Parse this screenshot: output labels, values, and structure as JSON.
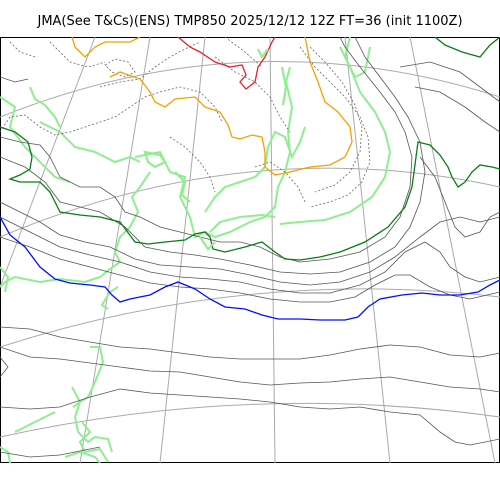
{
  "title": "JMA(See T&Cs)(ENS) TMP850 2025/12/12 12Z FT=36 (init 1100Z)",
  "colors": {
    "graticule": "#aaaaaa",
    "coast": "#90ee90",
    "contour": "#555555",
    "dotted": "#666666",
    "red": "#e8202a",
    "orange": "#f5a000",
    "green": "#0a7d16",
    "blue": "#0010ff",
    "lightgreen": "#90ee90"
  }
}
